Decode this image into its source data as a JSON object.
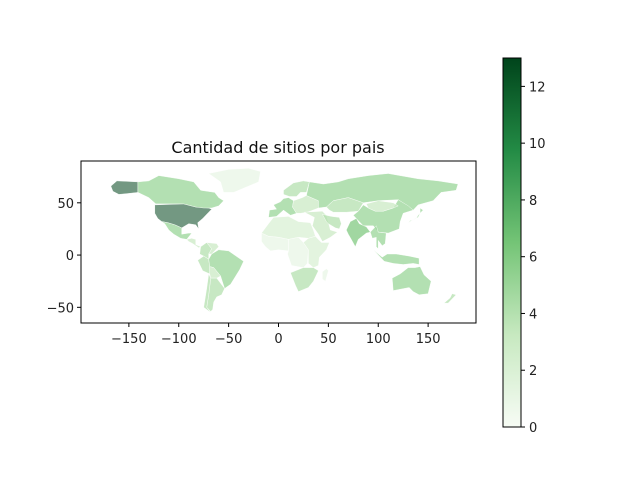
{
  "chart_data": {
    "type": "choropleth-map",
    "title": "Cantidad de sitios por pais",
    "xlabel": "",
    "ylabel": "",
    "xlim": [
      -198,
      198
    ],
    "ylim": [
      -65,
      90
    ],
    "xticks": [
      -150,
      -100,
      -50,
      0,
      50,
      100,
      150
    ],
    "yticks": [
      -50,
      0,
      50
    ],
    "grid": false,
    "colormap": {
      "name": "Greens",
      "low_color": "#f7fcf5",
      "high_color": "#00441b",
      "vmin": 0,
      "vmax": 13,
      "ticks": [
        0,
        2,
        4,
        6,
        8,
        10,
        12
      ]
    },
    "regions": [
      {
        "name": "USA",
        "value": 13
      },
      {
        "name": "Alaska",
        "value": 13
      },
      {
        "name": "Canada",
        "value": 5
      },
      {
        "name": "Greenland",
        "value": 1
      },
      {
        "name": "Mexico",
        "value": 5
      },
      {
        "name": "Central America",
        "value": 3
      },
      {
        "name": "Colombia",
        "value": 4
      },
      {
        "name": "Venezuela",
        "value": 3
      },
      {
        "name": "Peru",
        "value": 4
      },
      {
        "name": "Brazil",
        "value": 5
      },
      {
        "name": "Bolivia",
        "value": 3
      },
      {
        "name": "Argentina",
        "value": 4
      },
      {
        "name": "Chile",
        "value": 4
      },
      {
        "name": "Western Europe",
        "value": 5
      },
      {
        "name": "Scandinavia",
        "value": 4
      },
      {
        "name": "Eastern Europe",
        "value": 3
      },
      {
        "name": "Russia",
        "value": 5
      },
      {
        "name": "Kazakhstan",
        "value": 4
      },
      {
        "name": "Middle East",
        "value": 3
      },
      {
        "name": "Iran",
        "value": 4
      },
      {
        "name": "India",
        "value": 6
      },
      {
        "name": "China",
        "value": 5
      },
      {
        "name": "Mongolia",
        "value": 3
      },
      {
        "name": "Southeast Asia",
        "value": 5
      },
      {
        "name": "Indonesia",
        "value": 5
      },
      {
        "name": "Japan",
        "value": 5
      },
      {
        "name": "North Africa",
        "value": 2
      },
      {
        "name": "West Africa",
        "value": 1
      },
      {
        "name": "Central Africa",
        "value": 1
      },
      {
        "name": "East Africa",
        "value": 2
      },
      {
        "name": "South Africa",
        "value": 4
      },
      {
        "name": "Madagascar",
        "value": 1
      },
      {
        "name": "Australia",
        "value": 5
      },
      {
        "name": "New Zealand",
        "value": 4
      }
    ]
  }
}
